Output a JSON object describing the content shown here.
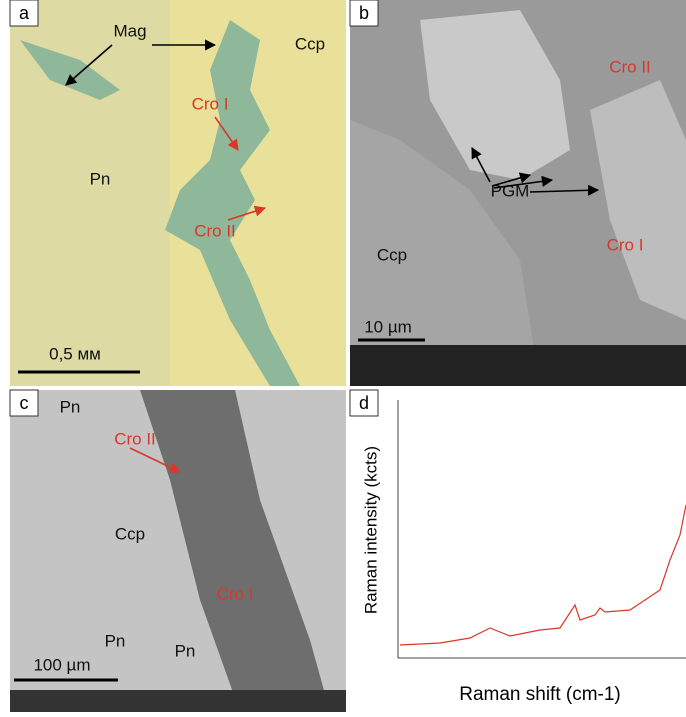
{
  "panels": [
    {
      "label": "a",
      "annotations": [
        "Mag",
        "Ccp",
        "Cro I",
        "Pn",
        "Cro II"
      ],
      "scale_bar": "0,5 мм"
    },
    {
      "label": "b",
      "annotations": [
        "Cro II",
        "PGM",
        "Ccp",
        "Cro I"
      ],
      "scale_bar": "10 µm"
    },
    {
      "label": "c",
      "annotations": [
        "Pn",
        "Cro II",
        "Ccp",
        "Cro I",
        "Pn",
        "Pn"
      ],
      "scale_bar": "100 µm"
    },
    {
      "label": "d",
      "y_label": "Raman intensity (kcts)",
      "x_label": "Raman shift (cm-1)"
    }
  ]
}
